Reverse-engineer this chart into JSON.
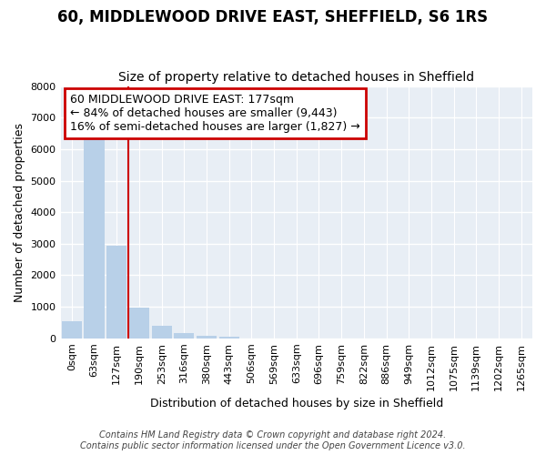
{
  "title": "60, MIDDLEWOOD DRIVE EAST, SHEFFIELD, S6 1RS",
  "subtitle": "Size of property relative to detached houses in Sheffield",
  "xlabel": "Distribution of detached houses by size in Sheffield",
  "ylabel": "Number of detached properties",
  "annotation_line1": "60 MIDDLEWOOD DRIVE EAST: 177sqm",
  "annotation_line2": "← 84% of detached houses are smaller (9,443)",
  "annotation_line3": "16% of semi-detached houses are larger (1,827) →",
  "footnote1": "Contains HM Land Registry data © Crown copyright and database right 2024.",
  "footnote2": "Contains public sector information licensed under the Open Government Licence v3.0.",
  "categories": [
    "0sqm",
    "63sqm",
    "127sqm",
    "190sqm",
    "253sqm",
    "316sqm",
    "380sqm",
    "443sqm",
    "506sqm",
    "569sqm",
    "633sqm",
    "696sqm",
    "759sqm",
    "822sqm",
    "886sqm",
    "949sqm",
    "1012sqm",
    "1075sqm",
    "1139sqm",
    "1202sqm",
    "1265sqm"
  ],
  "values": [
    550,
    6400,
    2930,
    970,
    390,
    170,
    70,
    50,
    0,
    0,
    0,
    0,
    0,
    0,
    0,
    0,
    0,
    0,
    0,
    0,
    0
  ],
  "bar_color": "#b8d0e8",
  "red_line_x": 2.5,
  "ylim": [
    0,
    8000
  ],
  "yticks": [
    0,
    1000,
    2000,
    3000,
    4000,
    5000,
    6000,
    7000,
    8000
  ],
  "fig_bg_color": "#ffffff",
  "plot_bg_color": "#e8eef5",
  "title_fontsize": 12,
  "subtitle_fontsize": 10,
  "xlabel_fontsize": 9,
  "ylabel_fontsize": 9,
  "tick_fontsize": 8,
  "annotation_fontsize": 9,
  "footnote_fontsize": 7
}
